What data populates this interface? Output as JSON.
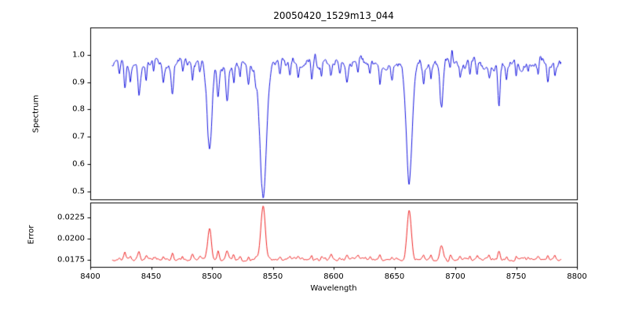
{
  "chart_data": {
    "type": "line",
    "title": "20050420_1529m13_044",
    "xlabel": "Wavelength",
    "xlim": [
      8400,
      8800
    ],
    "x_ticks": [
      8400,
      8450,
      8500,
      8550,
      8600,
      8650,
      8700,
      8750,
      8800
    ],
    "x_tick_labels": [
      "8400",
      "8450",
      "8500",
      "8550",
      "8600",
      "8650",
      "8700",
      "8750",
      "8800"
    ],
    "x_data_range": [
      8418,
      8787
    ],
    "axis_color": "#000000",
    "background": "#ffffff",
    "line_fields": [
      "center_wavelength",
      "depth_or_height",
      "sigma"
    ],
    "layout": {
      "grid": false,
      "legend": "none",
      "panel_arrangement": "two stacked panels sharing x axis"
    },
    "panels": [
      {
        "name": "spectrum",
        "ylabel": "Spectrum",
        "line_color": "#0000dd",
        "ylim": [
          0.47,
          1.1
        ],
        "y_ticks": [
          0.5,
          0.6,
          0.7,
          0.8,
          0.9,
          1.0
        ],
        "y_tick_labels": [
          "0.5",
          "0.6",
          "0.7",
          "0.8",
          "0.9",
          "1.0"
        ],
        "continuum_level": 0.965,
        "noise": [
          {
            "amp": 0.018,
            "scale": 6.0
          },
          {
            "amp": 0.012,
            "scale": 1.8
          },
          {
            "amp": 0.007,
            "scale": 0.7
          }
        ],
        "major_absorption_lines": [
          [
            8498.0,
            0.315,
            1.9
          ],
          [
            8542.1,
            0.465,
            2.6
          ],
          [
            8662.1,
            0.445,
            2.4
          ]
        ],
        "minor_absorption_lines": [
          [
            8424.0,
            0.05,
            0.7
          ],
          [
            8428.5,
            0.09,
            0.8
          ],
          [
            8433.0,
            0.07,
            0.7
          ],
          [
            8440.0,
            0.1,
            0.9
          ],
          [
            8446.0,
            0.06,
            0.7
          ],
          [
            8452.0,
            0.04,
            0.6
          ],
          [
            8460.0,
            0.05,
            0.7
          ],
          [
            8467.5,
            0.1,
            0.9
          ],
          [
            8476.0,
            0.04,
            0.6
          ],
          [
            8484.0,
            0.05,
            0.7
          ],
          [
            8490.0,
            0.04,
            0.6
          ],
          [
            8505.0,
            0.11,
            0.9
          ],
          [
            8512.5,
            0.13,
            1.0
          ],
          [
            8518.0,
            0.06,
            0.7
          ],
          [
            8523.0,
            0.04,
            0.6
          ],
          [
            8530.0,
            0.06,
            0.7
          ],
          [
            8536.0,
            0.04,
            0.6
          ],
          [
            8556.0,
            0.05,
            0.7
          ],
          [
            8564.0,
            0.04,
            0.6
          ],
          [
            8571.0,
            0.05,
            0.7
          ],
          [
            8582.0,
            0.06,
            0.7
          ],
          [
            8590.0,
            0.04,
            0.6
          ],
          [
            8598.0,
            0.05,
            0.7
          ],
          [
            8605.0,
            0.04,
            0.6
          ],
          [
            8611.0,
            0.06,
            0.8
          ],
          [
            8620.0,
            0.05,
            0.7
          ],
          [
            8630.0,
            0.04,
            0.6
          ],
          [
            8638.0,
            0.05,
            0.7
          ],
          [
            8648.0,
            0.06,
            0.7
          ],
          [
            8674.0,
            0.06,
            0.7
          ],
          [
            8680.0,
            0.05,
            0.6
          ],
          [
            8688.6,
            0.18,
            1.3
          ],
          [
            8696.0,
            0.05,
            0.7
          ],
          [
            8704.0,
            0.04,
            0.6
          ],
          [
            8712.0,
            0.05,
            0.7
          ],
          [
            8718.0,
            0.04,
            0.6
          ],
          [
            8728.0,
            0.05,
            0.7
          ],
          [
            8736.0,
            0.13,
            0.9
          ],
          [
            8742.0,
            0.06,
            0.7
          ],
          [
            8750.0,
            0.05,
            0.6
          ],
          [
            8760.0,
            0.04,
            0.6
          ],
          [
            8768.0,
            0.05,
            0.7
          ],
          [
            8776.0,
            0.06,
            0.7
          ],
          [
            8782.0,
            0.05,
            0.6
          ]
        ],
        "upward_spikes": [
          [
            8585.0,
            0.035,
            0.7
          ],
          [
            8697.0,
            0.06,
            0.8
          ]
        ]
      },
      {
        "name": "error",
        "ylabel": "Error",
        "line_color": "#ee1111",
        "ylim": [
          0.0167,
          0.0243
        ],
        "y_ticks": [
          0.0175,
          0.02,
          0.0225
        ],
        "y_tick_labels": [
          "0.0175",
          "0.0200",
          "0.0225"
        ],
        "baseline": 0.0176,
        "noise": [
          {
            "amp": 0.00018,
            "scale": 3.0
          },
          {
            "amp": 0.00012,
            "scale": 1.1
          }
        ],
        "peaks": [
          [
            8498.0,
            0.0036,
            1.5
          ],
          [
            8542.1,
            0.0063,
            1.8
          ],
          [
            8662.1,
            0.0058,
            1.7
          ]
        ],
        "minor_line_factor": 0.008
      }
    ]
  }
}
